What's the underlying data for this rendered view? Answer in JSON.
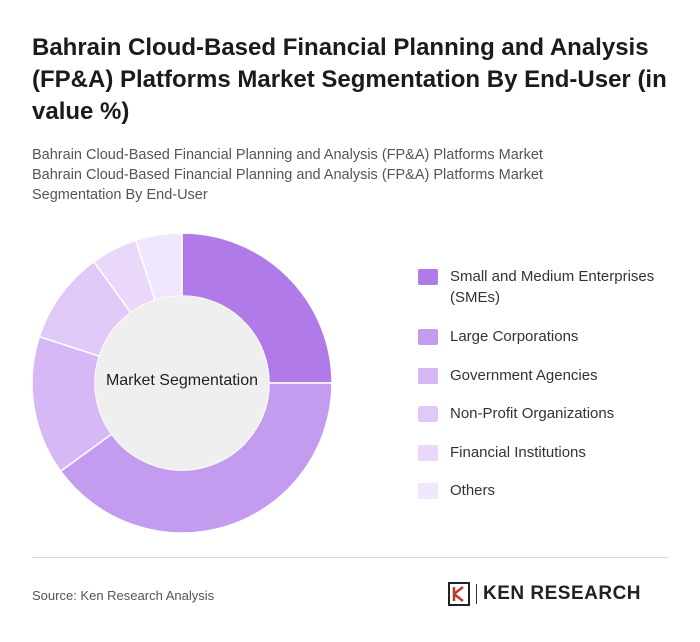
{
  "header": {
    "title": "Bahrain Cloud-Based Financial Planning and Analysis (FP&A) Platforms Market Segmentation By End-User (in value %)",
    "subtitle_line1": "Bahrain Cloud-Based Financial Planning and Analysis (FP&A) Platforms Market",
    "subtitle_line2": "Bahrain Cloud-Based Financial Planning and Analysis (FP&A) Platforms Market Segmentation By End-User"
  },
  "chart_data": {
    "type": "pie",
    "center_label": "Market Segmentation",
    "categories": [
      "Small and Medium Enterprises (SMEs)",
      "Large Corporations",
      "Government Agencies",
      "Non-Profit Organizations",
      "Financial Institutions",
      "Others"
    ],
    "values": [
      25,
      40,
      15,
      10,
      5,
      5
    ],
    "colors": [
      "#b07ae8",
      "#c39cf0",
      "#d5b8f5",
      "#e0c9f7",
      "#e9d8fa",
      "#f1e7fc"
    ],
    "legend_position": "right"
  },
  "footer": {
    "source": "Source: Ken Research Analysis",
    "logo_text": "KEN RESEARCH"
  }
}
